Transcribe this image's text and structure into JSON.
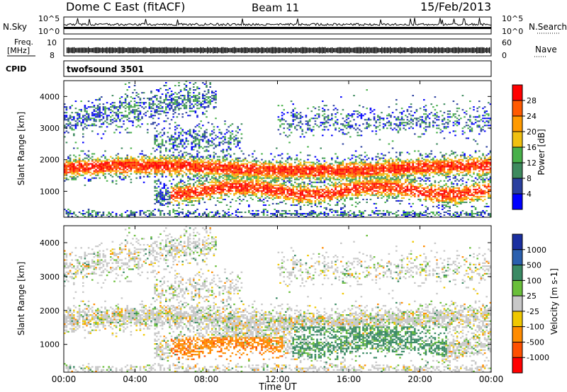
{
  "header": {
    "title": "Dome C East (fitACF)",
    "beam": "Beam 11",
    "date": "15/Feb/2013"
  },
  "top_panels": {
    "nsky_label": "N.Sky",
    "nsky_ticks": [
      "10^5",
      "10^0"
    ],
    "nsearch_label": "N.Search",
    "nsearch_ticks": [
      "10^5",
      "10^0"
    ],
    "freq_label": "Freq.",
    "freq_unit": "[MHz]",
    "freq_ticks": [
      "10",
      "8"
    ],
    "nave_label": "Nave",
    "nave_ticks": [
      "60",
      "0"
    ],
    "cpid_label": "CPID",
    "cpid_value": "twofsound 3501"
  },
  "colors": {
    "power_scale": [
      "#0000ff",
      "#2a3f9f",
      "#3e8a5e",
      "#48b04a",
      "#f0c010",
      "#ff9a00",
      "#ff5a00",
      "#ff0000"
    ],
    "velocity_scale": [
      "#1a2fa0",
      "#2a5fae",
      "#3a8a64",
      "#6abf3a",
      "#c8c8c8",
      "#f0c800",
      "#ff8c00",
      "#ff5000",
      "#ff0000"
    ]
  },
  "chart_data": [
    {
      "type": "heatmap",
      "panel": "power",
      "ylabel": "Slant Range [km]",
      "xlabel": "",
      "ylim": [
        180,
        4500
      ],
      "xlim": [
        "00:00",
        "24:00"
      ],
      "y_ticks": [
        "1000",
        "2000",
        "3000",
        "4000"
      ],
      "colorbar_label": "Power [dB]",
      "colorbar_ticks": [
        "4",
        "8",
        "12",
        "16",
        "20",
        "24",
        "28"
      ],
      "features": [
        {
          "range_km": [
            1400,
            2000
          ],
          "time_span": [
            "00:00",
            "24:00"
          ],
          "approx_power_db": 26
        },
        {
          "range_km": [
            600,
            1300
          ],
          "time_span": [
            "05:00",
            "24:00"
          ],
          "approx_power_db": 24
        },
        {
          "range_km": [
            3000,
            4300
          ],
          "time_span": [
            "00:00",
            "08:00"
          ],
          "approx_power_db": 10
        }
      ]
    },
    {
      "type": "heatmap",
      "panel": "velocity",
      "ylabel": "Slant Range [km]",
      "xlabel": "Time UT",
      "ylim": [
        180,
        4500
      ],
      "x_ticks": [
        "00:00",
        "04:00",
        "08:00",
        "12:00",
        "16:00",
        "20:00",
        "00:00"
      ],
      "y_ticks": [
        "1000",
        "2000",
        "3000",
        "4000"
      ],
      "colorbar_label": "Velocity [m s-1]",
      "colorbar_ticks": [
        "1000",
        "500",
        "100",
        "25",
        "-25",
        "-100",
        "-500",
        "-1000"
      ],
      "features": [
        {
          "range_km": [
            1500,
            2000
          ],
          "time_span": [
            "00:00",
            "24:00"
          ],
          "approx_velocity_ms": 0
        },
        {
          "range_km": [
            500,
            1100
          ],
          "time_span": [
            "06:00",
            "12:00"
          ],
          "approx_velocity_ms": -200
        },
        {
          "range_km": [
            600,
            1500
          ],
          "time_span": [
            "13:00",
            "21:00"
          ],
          "approx_velocity_ms": 300
        }
      ]
    }
  ]
}
